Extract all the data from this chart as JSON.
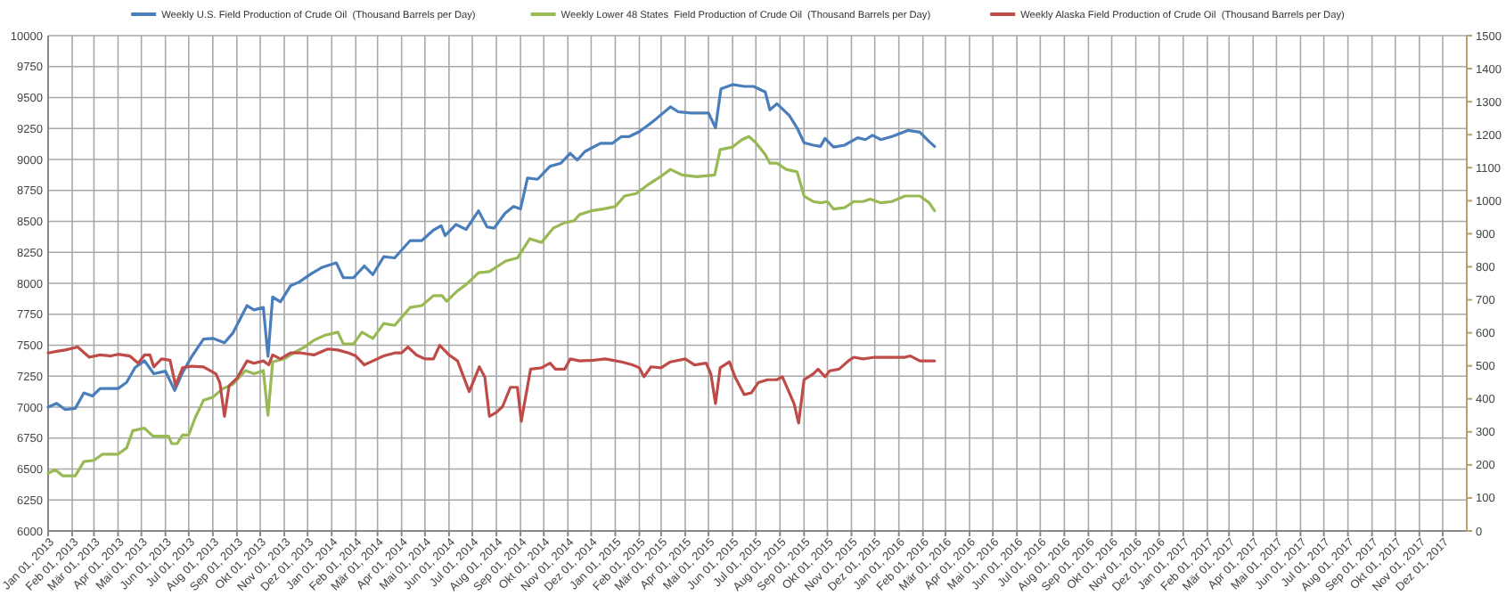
{
  "chart_data": {
    "type": "line",
    "xlim": [
      "2013-01-01",
      "2018-01-01"
    ],
    "xticks": [
      {
        "value": "2013-01-01",
        "label": "Jan 01, 2013"
      },
      {
        "value": "2013-02-01",
        "label": "Feb 01, 2013"
      },
      {
        "value": "2013-03-01",
        "label": "Mär 01, 2013"
      },
      {
        "value": "2013-04-01",
        "label": "Apr 01, 2013"
      },
      {
        "value": "2013-05-01",
        "label": "Mai 01, 2013"
      },
      {
        "value": "2013-06-01",
        "label": "Jun 01, 2013"
      },
      {
        "value": "2013-07-01",
        "label": "Jul 01, 2013"
      },
      {
        "value": "2013-08-01",
        "label": "Aug 01, 2013"
      },
      {
        "value": "2013-09-01",
        "label": "Sep 01, 2013"
      },
      {
        "value": "2013-10-01",
        "label": "Okt 01, 2013"
      },
      {
        "value": "2013-11-01",
        "label": "Nov 01, 2013"
      },
      {
        "value": "2013-12-01",
        "label": "Dez 01, 2013"
      },
      {
        "value": "2014-01-01",
        "label": "Jan 01, 2014"
      },
      {
        "value": "2014-02-01",
        "label": "Feb 01, 2014"
      },
      {
        "value": "2014-03-01",
        "label": "Mär 01, 2014"
      },
      {
        "value": "2014-04-01",
        "label": "Apr 01, 2014"
      },
      {
        "value": "2014-05-01",
        "label": "Mai 01, 2014"
      },
      {
        "value": "2014-06-01",
        "label": "Jun 01, 2014"
      },
      {
        "value": "2014-07-01",
        "label": "Jul 01, 2014"
      },
      {
        "value": "2014-08-01",
        "label": "Aug 01, 2014"
      },
      {
        "value": "2014-09-01",
        "label": "Sep 01, 2014"
      },
      {
        "value": "2014-10-01",
        "label": "Okt 01, 2014"
      },
      {
        "value": "2014-11-01",
        "label": "Nov 01, 2014"
      },
      {
        "value": "2014-12-01",
        "label": "Dez 01, 2014"
      },
      {
        "value": "2015-01-01",
        "label": "Jan 01, 2015"
      },
      {
        "value": "2015-02-01",
        "label": "Feb 01, 2015"
      },
      {
        "value": "2015-03-01",
        "label": "Mär 01, 2015"
      },
      {
        "value": "2015-04-01",
        "label": "Apr 01, 2015"
      },
      {
        "value": "2015-05-01",
        "label": "Mai 01, 2015"
      },
      {
        "value": "2015-06-01",
        "label": "Jun 01, 2015"
      },
      {
        "value": "2015-07-01",
        "label": "Jul 01, 2015"
      },
      {
        "value": "2015-08-01",
        "label": "Aug 01, 2015"
      },
      {
        "value": "2015-09-01",
        "label": "Sep 01, 2015"
      },
      {
        "value": "2015-10-01",
        "label": "Okt 01, 2015"
      },
      {
        "value": "2015-11-01",
        "label": "Nov 01, 2015"
      },
      {
        "value": "2015-12-01",
        "label": "Dez 01, 2015"
      },
      {
        "value": "2016-01-01",
        "label": "Jan 01, 2016"
      },
      {
        "value": "2016-02-01",
        "label": "Feb 01, 2016"
      },
      {
        "value": "2016-03-01",
        "label": "Mär 01, 2016"
      },
      {
        "value": "2016-04-01",
        "label": "Apr 01, 2016"
      },
      {
        "value": "2016-05-01",
        "label": "Mai 01, 2016"
      },
      {
        "value": "2016-06-01",
        "label": "Jun 01, 2016"
      },
      {
        "value": "2016-07-01",
        "label": "Jul 01, 2016"
      },
      {
        "value": "2016-08-01",
        "label": "Aug 01, 2016"
      },
      {
        "value": "2016-09-01",
        "label": "Sep 01, 2016"
      },
      {
        "value": "2016-10-01",
        "label": "Okt 01, 2016"
      },
      {
        "value": "2016-11-01",
        "label": "Nov 01, 2016"
      },
      {
        "value": "2016-12-01",
        "label": "Dez 01, 2016"
      },
      {
        "value": "2017-01-01",
        "label": "Jan 01, 2017"
      },
      {
        "value": "2017-02-01",
        "label": "Feb 01, 2017"
      },
      {
        "value": "2017-03-01",
        "label": "Mär 01, 2017"
      },
      {
        "value": "2017-04-01",
        "label": "Apr 01, 2017"
      },
      {
        "value": "2017-05-01",
        "label": "Mai 01, 2017"
      },
      {
        "value": "2017-06-01",
        "label": "Jun 01, 2017"
      },
      {
        "value": "2017-07-01",
        "label": "Jul 01, 2017"
      },
      {
        "value": "2017-08-01",
        "label": "Aug 01, 2017"
      },
      {
        "value": "2017-09-01",
        "label": "Sep 01, 2017"
      },
      {
        "value": "2017-10-01",
        "label": "Okt 01, 2017"
      },
      {
        "value": "2017-11-01",
        "label": "Nov 01, 2017"
      },
      {
        "value": "2017-12-01",
        "label": "Dez 01, 2017"
      }
    ],
    "ylim": [
      6000,
      10000
    ],
    "yticks": [
      6000,
      6250,
      6500,
      6750,
      7000,
      7250,
      7500,
      7750,
      8000,
      8250,
      8500,
      8750,
      9000,
      9250,
      9500,
      9750,
      10000
    ],
    "y2lim": [
      0,
      1500
    ],
    "y2ticks": [
      0,
      100,
      200,
      300,
      400,
      500,
      600,
      700,
      800,
      900,
      1000,
      1100,
      1200,
      1300,
      1400,
      1500
    ],
    "grid": true,
    "legend": "top",
    "marker": "none",
    "line_style": "solid",
    "series": [
      {
        "name": "Weekly U.S. Field Production of Crude Oil  (Thousand Barrels per Day)",
        "color": "#4a7ebb",
        "x": [
          "2013-01-01",
          "2013-01-12",
          "2013-01-23",
          "2013-02-05",
          "2013-02-16",
          "2013-02-27",
          "2013-03-09",
          "2013-04-01",
          "2013-04-12",
          "2013-04-23",
          "2013-05-05",
          "2013-05-17",
          "2013-06-01",
          "2013-06-13",
          "2013-06-23",
          "2013-07-05",
          "2013-07-20",
          "2013-08-01",
          "2013-08-16",
          "2013-08-27",
          "2013-09-14",
          "2013-09-23",
          "2013-10-05",
          "2013-10-11",
          "2013-10-17",
          "2013-10-27",
          "2013-11-09",
          "2013-11-20",
          "2013-12-05",
          "2013-12-20",
          "2014-01-07",
          "2014-01-16",
          "2014-01-29",
          "2014-02-12",
          "2014-02-23",
          "2014-03-09",
          "2014-03-23",
          "2014-04-12",
          "2014-04-27",
          "2014-05-12",
          "2014-05-22",
          "2014-05-27",
          "2014-06-10",
          "2014-06-23",
          "2014-07-09",
          "2014-07-20",
          "2014-07-29",
          "2014-08-12",
          "2014-08-23",
          "2014-09-01",
          "2014-09-10",
          "2014-09-23",
          "2014-10-09",
          "2014-10-23",
          "2014-11-04",
          "2014-11-13",
          "2014-11-23",
          "2014-12-13",
          "2014-12-28",
          "2015-01-09",
          "2015-01-19",
          "2015-02-01",
          "2015-02-13",
          "2015-02-23",
          "2015-03-13",
          "2015-03-23",
          "2015-04-09",
          "2015-05-01",
          "2015-05-10",
          "2015-05-17",
          "2015-06-01",
          "2015-06-16",
          "2015-06-28",
          "2015-07-13",
          "2015-07-19",
          "2015-07-28",
          "2015-08-13",
          "2015-08-23",
          "2015-09-01",
          "2015-09-13",
          "2015-09-22",
          "2015-09-28",
          "2015-10-09",
          "2015-10-23",
          "2015-11-09",
          "2015-11-19",
          "2015-11-28",
          "2015-12-09",
          "2015-12-23",
          "2016-01-13",
          "2016-01-28",
          "2016-02-09",
          "2016-02-16"
        ],
        "values": [
          7000,
          7030,
          6980,
          6990,
          7115,
          7090,
          7150,
          7150,
          7200,
          7320,
          7375,
          7270,
          7290,
          7135,
          7280,
          7410,
          7550,
          7555,
          7520,
          7600,
          7820,
          7785,
          7805,
          7410,
          7890,
          7850,
          7980,
          8010,
          8075,
          8130,
          8165,
          8045,
          8045,
          8140,
          8070,
          8215,
          8205,
          8345,
          8345,
          8430,
          8465,
          8385,
          8475,
          8435,
          8585,
          8455,
          8445,
          8565,
          8620,
          8600,
          8850,
          8840,
          8945,
          8970,
          9050,
          8995,
          9065,
          9130,
          9130,
          9185,
          9185,
          9225,
          9280,
          9330,
          9425,
          9385,
          9375,
          9375,
          9255,
          9570,
          9605,
          9590,
          9590,
          9545,
          9400,
          9450,
          9355,
          9255,
          9135,
          9115,
          9105,
          9170,
          9100,
          9115,
          9175,
          9160,
          9195,
          9160,
          9185,
          9235,
          9220,
          9145,
          9105
        ]
      },
      {
        "name": "Weekly Lower 48 States  Field Production of Crude Oil  (Thousand Barrels per Day)",
        "color": "#98b954",
        "x": [
          "2013-01-01",
          "2013-01-10",
          "2013-01-20",
          "2013-02-05",
          "2013-02-16",
          "2013-03-01",
          "2013-03-12",
          "2013-04-01",
          "2013-04-12",
          "2013-04-20",
          "2013-05-05",
          "2013-05-16",
          "2013-06-05",
          "2013-06-09",
          "2013-06-16",
          "2013-06-23",
          "2013-07-01",
          "2013-07-09",
          "2013-07-20",
          "2013-08-01",
          "2013-08-14",
          "2013-08-27",
          "2013-09-12",
          "2013-09-23",
          "2013-10-05",
          "2013-10-11",
          "2013-10-17",
          "2013-11-01",
          "2013-11-12",
          "2013-11-27",
          "2013-12-09",
          "2013-12-23",
          "2014-01-09",
          "2014-01-16",
          "2014-01-29",
          "2014-02-09",
          "2014-02-23",
          "2014-03-09",
          "2014-03-23",
          "2014-04-12",
          "2014-04-27",
          "2014-05-12",
          "2014-05-23",
          "2014-05-29",
          "2014-06-12",
          "2014-06-23",
          "2014-07-09",
          "2014-07-23",
          "2014-08-13",
          "2014-08-28",
          "2014-09-13",
          "2014-09-28",
          "2014-10-13",
          "2014-10-28",
          "2014-11-09",
          "2014-11-16",
          "2014-12-01",
          "2014-12-16",
          "2015-01-01",
          "2015-01-13",
          "2015-01-28",
          "2015-02-13",
          "2015-02-28",
          "2015-03-13",
          "2015-03-28",
          "2015-04-16",
          "2015-05-09",
          "2015-05-16",
          "2015-06-01",
          "2015-06-13",
          "2015-06-22",
          "2015-07-01",
          "2015-07-13",
          "2015-07-19",
          "2015-07-28",
          "2015-08-09",
          "2015-08-23",
          "2015-09-01",
          "2015-09-13",
          "2015-09-23",
          "2015-10-01",
          "2015-10-09",
          "2015-10-23",
          "2015-11-04",
          "2015-11-16",
          "2015-11-25",
          "2015-12-09",
          "2015-12-23",
          "2016-01-09",
          "2016-01-28",
          "2016-02-09",
          "2016-02-16"
        ],
        "values": [
          6465,
          6495,
          6445,
          6445,
          6560,
          6570,
          6620,
          6620,
          6670,
          6810,
          6830,
          6765,
          6765,
          6705,
          6705,
          6775,
          6775,
          6910,
          7055,
          7080,
          7150,
          7185,
          7295,
          7270,
          7295,
          6935,
          7365,
          7390,
          7435,
          7485,
          7540,
          7580,
          7605,
          7510,
          7510,
          7605,
          7555,
          7675,
          7660,
          7805,
          7820,
          7900,
          7900,
          7855,
          7940,
          7990,
          8085,
          8095,
          8180,
          8205,
          8360,
          8330,
          8445,
          8490,
          8505,
          8555,
          8585,
          8600,
          8620,
          8705,
          8725,
          8800,
          8860,
          8920,
          8875,
          8860,
          8875,
          9080,
          9100,
          9160,
          9185,
          9135,
          9040,
          8970,
          8970,
          8920,
          8900,
          8705,
          8660,
          8650,
          8660,
          8600,
          8610,
          8660,
          8660,
          8680,
          8650,
          8660,
          8705,
          8705,
          8650,
          8585
        ]
      },
      {
        "name": "Weekly Alaska Field Production of Crude Oil  (Thousand Barrels per Day)",
        "color": "#be4b48",
        "axis": "y2",
        "x": [
          "2013-01-01",
          "2013-01-12",
          "2013-01-23",
          "2013-02-08",
          "2013-02-23",
          "2013-03-09",
          "2013-03-23",
          "2013-04-01",
          "2013-04-16",
          "2013-04-27",
          "2013-05-05",
          "2013-05-12",
          "2013-05-17",
          "2013-05-27",
          "2013-06-07",
          "2013-06-14",
          "2013-06-23",
          "2013-07-05",
          "2013-07-20",
          "2013-08-05",
          "2013-08-10",
          "2013-08-16",
          "2013-08-22",
          "2013-09-01",
          "2013-09-14",
          "2013-09-23",
          "2013-10-05",
          "2013-10-12",
          "2013-10-17",
          "2013-10-27",
          "2013-11-09",
          "2013-11-23",
          "2013-12-09",
          "2013-12-27",
          "2014-01-09",
          "2014-01-23",
          "2014-02-01",
          "2014-02-12",
          "2014-02-23",
          "2014-03-09",
          "2014-03-23",
          "2014-04-01",
          "2014-04-09",
          "2014-04-20",
          "2014-05-01",
          "2014-05-12",
          "2014-05-20",
          "2014-06-01",
          "2014-06-12",
          "2014-06-27",
          "2014-07-10",
          "2014-07-17",
          "2014-07-23",
          "2014-08-01",
          "2014-08-09",
          "2014-08-19",
          "2014-08-28",
          "2014-09-02",
          "2014-09-14",
          "2014-09-28",
          "2014-10-09",
          "2014-10-16",
          "2014-10-28",
          "2014-11-04",
          "2014-11-16",
          "2014-12-04",
          "2014-12-19",
          "2015-01-09",
          "2015-01-23",
          "2015-02-01",
          "2015-02-07",
          "2015-02-16",
          "2015-03-01",
          "2015-03-13",
          "2015-04-01",
          "2015-04-13",
          "2015-04-28",
          "2015-05-04",
          "2015-05-10",
          "2015-05-16",
          "2015-05-28",
          "2015-06-04",
          "2015-06-16",
          "2015-06-25",
          "2015-07-04",
          "2015-07-16",
          "2015-07-28",
          "2015-08-04",
          "2015-08-14",
          "2015-08-19",
          "2015-08-25",
          "2015-09-01",
          "2015-09-13",
          "2015-09-19",
          "2015-09-28",
          "2015-10-04",
          "2015-10-16",
          "2015-10-28",
          "2015-11-04",
          "2015-11-16",
          "2015-12-01",
          "2015-12-23",
          "2016-01-09",
          "2016-01-16",
          "2016-01-28",
          "2016-02-16"
        ],
        "values": [
          539,
          544,
          548,
          557,
          526,
          533,
          530,
          535,
          530,
          508,
          533,
          533,
          497,
          521,
          517,
          440,
          494,
          499,
          497,
          476,
          449,
          347,
          440,
          462,
          515,
          508,
          515,
          503,
          533,
          521,
          539,
          539,
          533,
          551,
          548,
          539,
          530,
          503,
          515,
          530,
          539,
          539,
          557,
          533,
          521,
          521,
          562,
          533,
          515,
          422,
          497,
          467,
          347,
          359,
          377,
          435,
          435,
          332,
          490,
          494,
          508,
          490,
          490,
          521,
          515,
          517,
          521,
          512,
          503,
          494,
          467,
          497,
          494,
          512,
          521,
          503,
          508,
          476,
          386,
          494,
          512,
          467,
          413,
          418,
          449,
          458,
          458,
          467,
          413,
          386,
          327,
          458,
          476,
          490,
          467,
          485,
          490,
          515,
          526,
          521,
          526,
          526,
          526,
          530,
          515,
          515
        ]
      }
    ]
  }
}
